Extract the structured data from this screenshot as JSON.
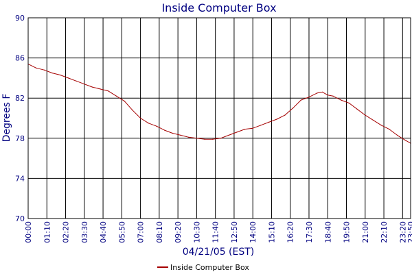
{
  "chart_data": {
    "type": "line",
    "title": "Inside Computer Box",
    "xlabel": "04/21/05 (EST)",
    "ylabel": "Degrees F",
    "ylim": [
      70,
      90
    ],
    "yticks": [
      70,
      74,
      78,
      82,
      86,
      90
    ],
    "xlim": [
      "00:00",
      "23:50"
    ],
    "xticks": [
      "00:00",
      "01:10",
      "02:20",
      "03:30",
      "04:40",
      "05:50",
      "07:00",
      "08:10",
      "09:20",
      "10:30",
      "11:40",
      "12:50",
      "14:00",
      "15:10",
      "16:20",
      "17:30",
      "18:40",
      "19:50",
      "21:00",
      "22:10",
      "23:20",
      "23:50"
    ],
    "grid": true,
    "legend_position": "bottom-center",
    "colors": {
      "series": "#a50000",
      "text": "#000080",
      "grid": "#000000"
    },
    "series": [
      {
        "name": "Inside Computer Box",
        "x": [
          "00:00",
          "00:30",
          "01:00",
          "01:30",
          "02:00",
          "02:30",
          "03:00",
          "03:30",
          "04:00",
          "04:30",
          "05:00",
          "05:30",
          "06:00",
          "06:30",
          "07:00",
          "07:30",
          "08:00",
          "08:30",
          "09:00",
          "09:30",
          "10:00",
          "10:30",
          "11:00",
          "11:30",
          "12:00",
          "12:30",
          "13:00",
          "13:30",
          "14:00",
          "14:30",
          "15:00",
          "15:30",
          "16:00",
          "16:30",
          "17:00",
          "17:30",
          "18:00",
          "18:20",
          "18:40",
          "19:00",
          "19:30",
          "20:00",
          "20:30",
          "21:00",
          "21:30",
          "22:00",
          "22:30",
          "23:00",
          "23:30",
          "23:50"
        ],
        "values": [
          85.4,
          85.0,
          84.8,
          84.5,
          84.3,
          84.0,
          83.7,
          83.4,
          83.1,
          82.9,
          82.7,
          82.2,
          81.7,
          80.8,
          80.0,
          79.5,
          79.2,
          78.8,
          78.5,
          78.3,
          78.1,
          78.0,
          77.9,
          77.9,
          78.0,
          78.3,
          78.6,
          78.9,
          79.0,
          79.3,
          79.6,
          79.9,
          80.3,
          81.0,
          81.8,
          82.1,
          82.5,
          82.6,
          82.3,
          82.2,
          81.8,
          81.5,
          80.9,
          80.3,
          79.8,
          79.3,
          78.9,
          78.3,
          77.8,
          77.5
        ]
      }
    ]
  }
}
